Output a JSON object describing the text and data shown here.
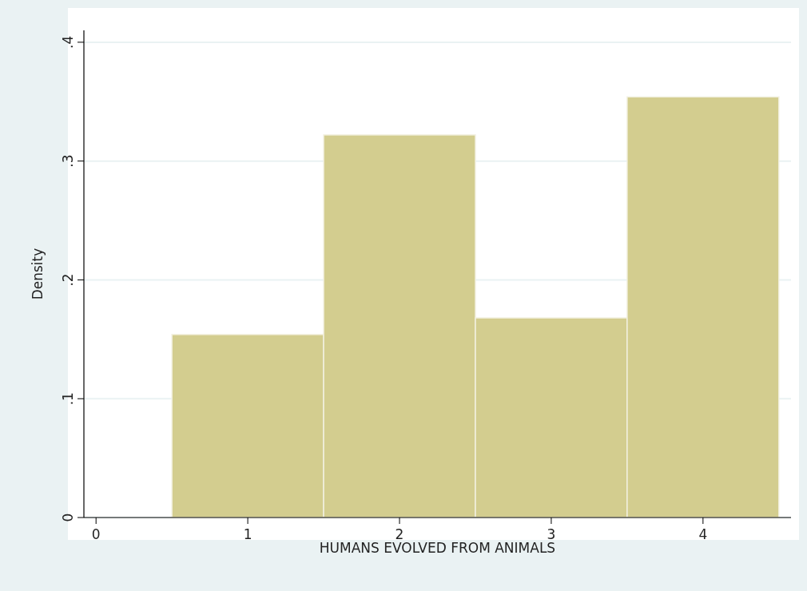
{
  "chart_data": {
    "type": "histogram",
    "xlabel": "HUMANS EVOLVED FROM ANIMALS",
    "ylabel": "Density",
    "bins": [
      0.5,
      1.5,
      2.5,
      3.5,
      4.5
    ],
    "values": [
      0.154,
      0.322,
      0.168,
      0.354
    ],
    "color": "#d3cd8f",
    "xlim": [
      -0.08,
      4.58
    ],
    "xticks": [
      0,
      1,
      2,
      3,
      4
    ],
    "ylim": [
      0,
      0.41
    ],
    "yticks": [
      {
        "value": 0,
        "label": "0"
      },
      {
        "value": 0.1,
        "label": ".1"
      },
      {
        "value": 0.2,
        "label": ".2"
      },
      {
        "value": 0.3,
        "label": ".3"
      },
      {
        "value": 0.4,
        "label": ".4"
      }
    ],
    "grid": "y"
  }
}
